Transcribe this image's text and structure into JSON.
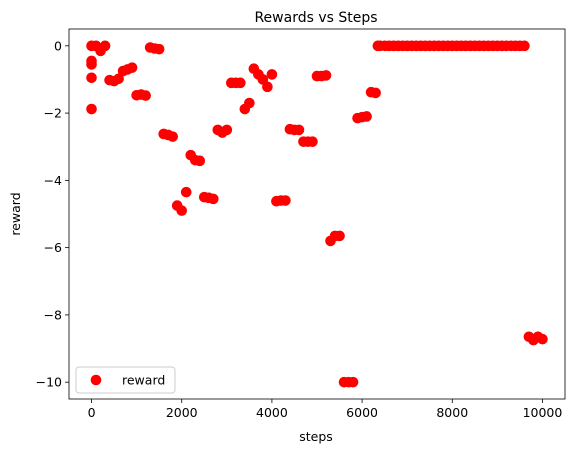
{
  "chart_data": {
    "type": "scatter",
    "title": "Rewards vs Steps",
    "xlabel": "steps",
    "ylabel": "reward",
    "xlim": [
      -500,
      10500
    ],
    "ylim": [
      -10.5,
      0.5
    ],
    "xticks": [
      0,
      2000,
      4000,
      6000,
      8000,
      10000
    ],
    "yticks": [
      0,
      -2,
      -4,
      -6,
      -8,
      -10
    ],
    "xtick_labels": [
      "0",
      "2000",
      "4000",
      "6000",
      "8000",
      "10000"
    ],
    "ytick_labels": [
      "0",
      "−2",
      "−4",
      "−6",
      "−8",
      "−10"
    ],
    "grid": false,
    "legend": {
      "placement": "lower-left",
      "entries": [
        {
          "label": "reward",
          "color": "#ff0000",
          "marker": "circle"
        }
      ]
    },
    "series": [
      {
        "name": "reward",
        "color": "#ff0000",
        "x": [
          0,
          0,
          0,
          0,
          0,
          100,
          200,
          300,
          400,
          500,
          600,
          700,
          800,
          900,
          1000,
          1100,
          1200,
          1300,
          1400,
          1500,
          1600,
          1700,
          1800,
          1900,
          2000,
          2100,
          2200,
          2300,
          2400,
          2500,
          2600,
          2700,
          2800,
          2900,
          3000,
          3100,
          3200,
          3300,
          3400,
          3500,
          3600,
          3700,
          3800,
          3900,
          4000,
          4100,
          4200,
          4300,
          4400,
          4500,
          4600,
          4700,
          4800,
          4900,
          5000,
          5100,
          5200,
          5300,
          5400,
          5500,
          5600,
          5700,
          5800,
          5900,
          6000,
          6100,
          6200,
          6300,
          6350,
          6400,
          6500,
          6600,
          6700,
          6800,
          6900,
          7000,
          7100,
          7200,
          7300,
          7400,
          7500,
          7600,
          7700,
          7800,
          7900,
          8000,
          8100,
          8200,
          8300,
          8400,
          8500,
          8600,
          8700,
          8800,
          8900,
          9000,
          9100,
          9200,
          9300,
          9400,
          9500,
          9600,
          9700,
          9800,
          9900,
          10000
        ],
        "y": [
          0,
          -0.45,
          -0.55,
          -0.95,
          -1.88,
          0,
          -0.15,
          0,
          -1.02,
          -1.05,
          -0.98,
          -0.75,
          -0.7,
          -0.65,
          -1.47,
          -1.45,
          -1.48,
          -0.05,
          -0.08,
          -0.1,
          -2.62,
          -2.65,
          -2.7,
          -4.75,
          -4.9,
          -4.35,
          -3.25,
          -3.4,
          -3.42,
          -4.5,
          -4.52,
          -4.55,
          -2.5,
          -2.58,
          -2.5,
          -1.1,
          -1.1,
          -1.1,
          -1.88,
          -1.7,
          -0.68,
          -0.85,
          -1.0,
          -1.22,
          -0.85,
          -4.62,
          -4.6,
          -4.6,
          -2.48,
          -2.5,
          -2.5,
          -2.85,
          -2.85,
          -2.85,
          -0.9,
          -0.9,
          -0.88,
          -5.8,
          -5.65,
          -5.65,
          -10,
          -10,
          -10,
          -2.15,
          -2.12,
          -2.1,
          -1.38,
          -1.4,
          0,
          0,
          0,
          0,
          0,
          0,
          0,
          0,
          0,
          0,
          0,
          0,
          0,
          0,
          0,
          0,
          0,
          0,
          0,
          0,
          0,
          0,
          0,
          0,
          0,
          0,
          0,
          0,
          0,
          0,
          0,
          0,
          0,
          0,
          -8.65,
          -8.75,
          -8.65,
          -8.72
        ]
      }
    ]
  }
}
